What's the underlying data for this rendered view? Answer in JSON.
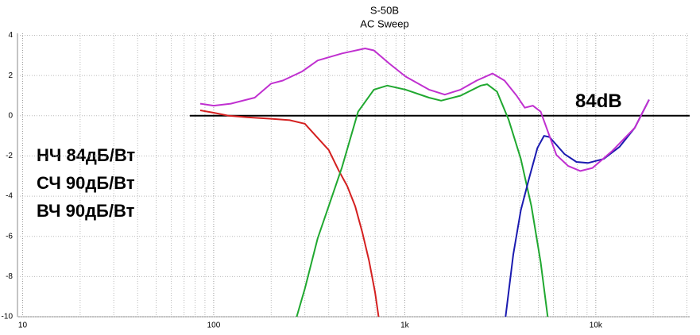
{
  "chart_data": {
    "type": "line",
    "title": "S-50B",
    "subtitle": "AC Sweep",
    "log_x": true,
    "grid": true,
    "xlim": [
      9.4,
      31000
    ],
    "ylim": [
      -10,
      4.1
    ],
    "xticks": [
      10,
      100,
      {
        "value": 1000,
        "label": "1k"
      },
      {
        "value": 10000,
        "label": "10k"
      }
    ],
    "xminorticks": [
      20,
      30,
      40,
      50,
      60,
      70,
      80,
      90,
      200,
      300,
      400,
      500,
      600,
      700,
      800,
      900,
      2000,
      3000,
      4000,
      5000,
      6000,
      7000,
      8000,
      9000,
      20000,
      30000
    ],
    "yticks": [
      4,
      2,
      0,
      -2,
      -4,
      -6,
      -8,
      -10
    ],
    "series": [
      {
        "color": "#d42020",
        "x": [
          85,
          100,
          120,
          150,
          200,
          250,
          300,
          350,
          400,
          450,
          500,
          550,
          600,
          650,
          700,
          730
        ],
        "values": [
          0.27,
          0.15,
          0.0,
          -0.08,
          -0.15,
          -0.22,
          -0.4,
          -1.1,
          -1.7,
          -2.7,
          -3.5,
          -4.5,
          -5.8,
          -7.2,
          -8.8,
          -10
        ]
      },
      {
        "color": "#20a830",
        "x": [
          272,
          300,
          350,
          400,
          470,
          570,
          690,
          810,
          1010,
          1340,
          1550,
          1960,
          2500,
          2700,
          3040,
          3500,
          4050,
          4600,
          5150,
          5600
        ],
        "values": [
          -10,
          -8.6,
          -6.1,
          -4.5,
          -2.55,
          0.2,
          1.3,
          1.5,
          1.3,
          0.9,
          0.75,
          1.0,
          1.5,
          1.57,
          1.2,
          -0.2,
          -2.15,
          -4.5,
          -7.3,
          -10
        ]
      },
      {
        "color": "#1a1ab0",
        "x": [
          3370,
          3700,
          4050,
          4480,
          4950,
          5360,
          5720,
          6220,
          6850,
          7920,
          9100,
          11000,
          13300,
          16000,
          19000
        ],
        "values": [
          -10,
          -6.9,
          -4.7,
          -3.1,
          -1.6,
          -1.0,
          -1.06,
          -1.45,
          -1.9,
          -2.3,
          -2.35,
          -2.15,
          -1.55,
          -0.6,
          0.8
        ]
      },
      {
        "color": "#c030d0",
        "x": [
          85,
          100,
          123,
          164,
          200,
          230,
          290,
          350,
          470,
          620,
          690,
          830,
          1010,
          1340,
          1620,
          1960,
          2380,
          2880,
          3330,
          3850,
          4250,
          4680,
          5150,
          5720,
          6220,
          7170,
          8300,
          9600,
          12200,
          16000,
          19000
        ],
        "values": [
          0.6,
          0.5,
          0.6,
          0.9,
          1.6,
          1.75,
          2.2,
          2.75,
          3.1,
          3.35,
          3.25,
          2.6,
          1.95,
          1.3,
          1.05,
          1.3,
          1.75,
          2.1,
          1.75,
          1.0,
          0.4,
          0.5,
          0.2,
          -1.0,
          -1.95,
          -2.5,
          -2.75,
          -2.6,
          -1.75,
          -0.6,
          0.8
        ]
      }
    ],
    "reference_line": {
      "value": 0,
      "x": [
        75,
        31000
      ],
      "label": "84dB",
      "color": "#000000"
    },
    "annotations": [
      "НЧ 84дБ/Вт",
      "СЧ 90дБ/Вт",
      "ВЧ 90дБ/Вт"
    ]
  }
}
